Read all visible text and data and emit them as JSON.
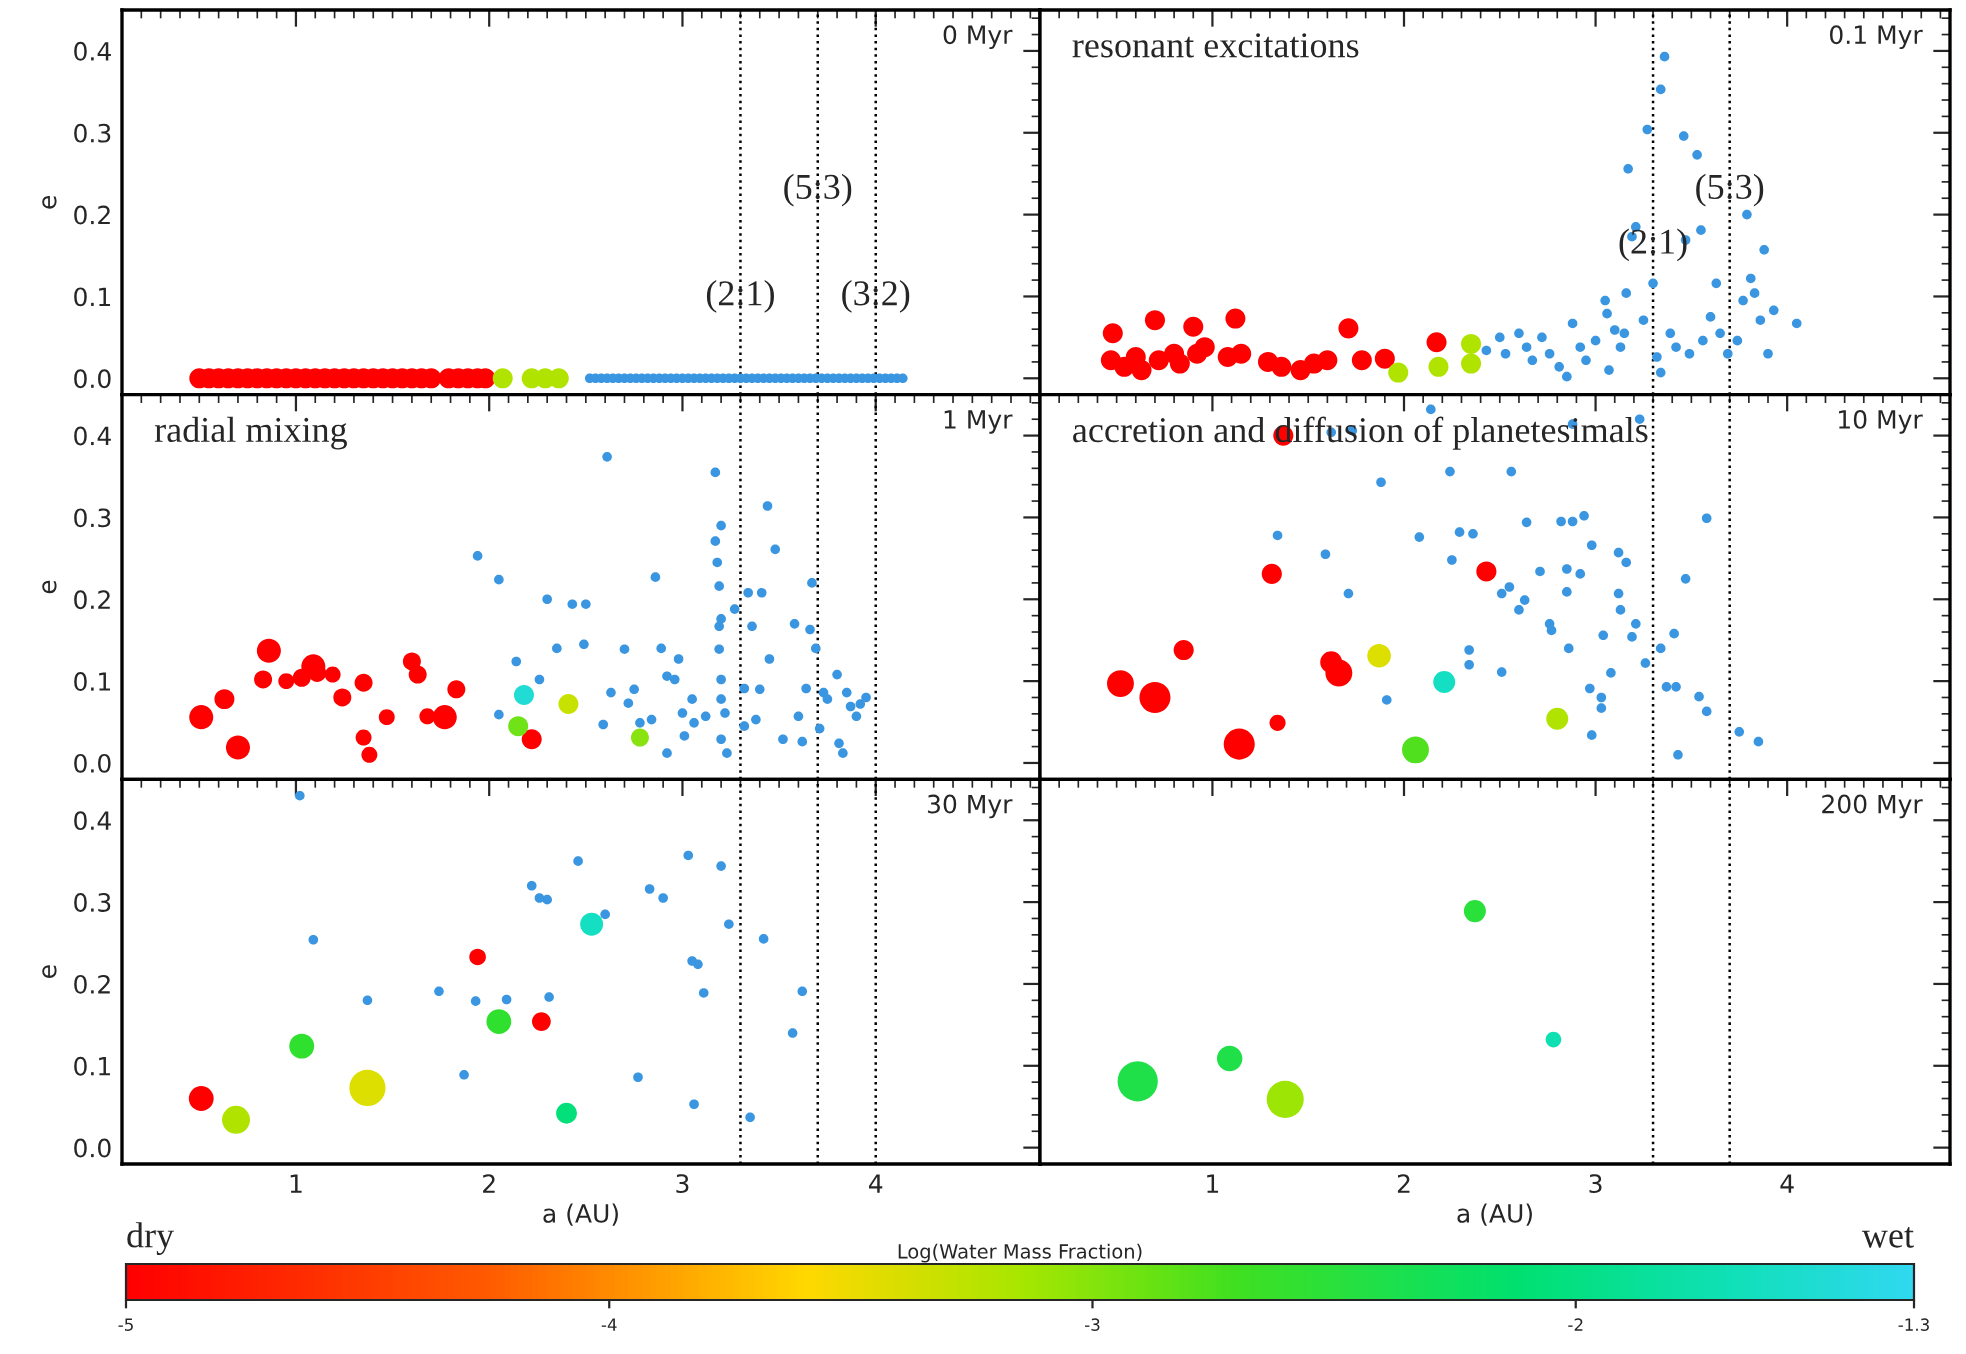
{
  "chart_data": [
    {
      "type": "bubble",
      "title": "0 Myr",
      "ylabel": "e",
      "annotations": [
        {
          "text": "(2:1)",
          "x": 3.3,
          "y": 0.1
        },
        {
          "text": "(5:3)",
          "x": 3.7,
          "y": 0.23
        },
        {
          "text": "(3:2)",
          "x": 4.0,
          "y": 0.1
        }
      ],
      "xlim": [
        0.1,
        4.85
      ],
      "ylim": [
        -0.02,
        0.45
      ],
      "xticks": [
        1,
        2,
        3,
        4
      ],
      "yticks": [
        {
          "value": 0,
          "label": "0.0"
        },
        {
          "value": 0.1,
          "label": "0.1"
        },
        {
          "value": 0.2,
          "label": "0.2"
        },
        {
          "value": 0.3,
          "label": "0.3"
        },
        {
          "value": 0.4,
          "label": "0.4"
        }
      ],
      "tick_labels": "y",
      "ref_lines": [
        {
          "axis": "x",
          "value": 3.3,
          "line_style": "dotted",
          "color": "#000000"
        },
        {
          "axis": "x",
          "value": 3.7,
          "line_style": "dotted",
          "color": "#000000"
        },
        {
          "axis": "x",
          "value": 4.0,
          "line_style": "dotted",
          "color": "#000000"
        }
      ],
      "series": [
        {
          "type": "bubble",
          "x": [
            0.5,
            0.55,
            0.6,
            0.65,
            0.7,
            0.75,
            0.8,
            0.85,
            0.9,
            0.95,
            1.0,
            1.05,
            1.1,
            1.15,
            1.2,
            1.25,
            1.3,
            1.35,
            1.4,
            1.45,
            1.5,
            1.55,
            1.6,
            1.65,
            1.7,
            1.79,
            1.84,
            1.89,
            1.94,
            1.98,
            2.07,
            2.22,
            2.29,
            2.36
          ],
          "values": [
            0,
            0,
            0,
            0,
            0,
            0,
            0,
            0,
            0,
            0,
            0,
            0,
            0,
            0,
            0,
            0,
            0,
            0,
            0,
            0,
            0,
            0,
            0,
            0,
            0,
            0,
            0,
            0,
            0,
            0,
            0,
            0,
            0,
            0
          ],
          "sizes": [
            1,
            1,
            1,
            1,
            1,
            1,
            1,
            1,
            1,
            1,
            1,
            1,
            1,
            1,
            1,
            1,
            1,
            1,
            1,
            1,
            1,
            1,
            1,
            1,
            1,
            1,
            1,
            1,
            1,
            1,
            1,
            1,
            1,
            1
          ],
          "colors": [
            "#ff0000",
            "#ff0000",
            "#ff0000",
            "#ff0000",
            "#ff0000",
            "#ff0000",
            "#ff0000",
            "#ff0000",
            "#ff0000",
            "#ff0000",
            "#ff0000",
            "#ff0000",
            "#ff0000",
            "#ff0000",
            "#ff0000",
            "#ff0000",
            "#ff0000",
            "#ff0000",
            "#ff0000",
            "#ff0000",
            "#ff0000",
            "#ff0000",
            "#ff0000",
            "#ff0000",
            "#ff0000",
            "#ff0000",
            "#ff0000",
            "#ff0000",
            "#ff0000",
            "#ff0000",
            "#b0e400",
            "#b0e400",
            "#b0e400",
            "#b0e400"
          ]
        },
        {
          "type": "scatter",
          "color": "#3a96e0",
          "x": [
            2.52,
            2.55,
            2.58,
            2.61,
            2.64,
            2.67,
            2.7,
            2.73,
            2.76,
            2.79,
            2.82,
            2.85,
            2.88,
            2.91,
            2.94,
            2.97,
            3.0,
            3.03,
            3.06,
            3.09,
            3.12,
            3.15,
            3.18,
            3.21,
            3.24,
            3.27,
            3.3,
            3.33,
            3.36,
            3.39,
            3.42,
            3.45,
            3.48,
            3.51,
            3.54,
            3.57,
            3.6,
            3.63,
            3.66,
            3.69,
            3.72,
            3.75,
            3.78,
            3.81,
            3.84,
            3.87,
            3.9,
            3.93,
            3.96,
            3.99,
            4.02,
            4.05,
            4.08,
            4.11,
            4.14
          ],
          "values": [
            0,
            0,
            0,
            0,
            0,
            0,
            0,
            0,
            0,
            0,
            0,
            0,
            0,
            0,
            0,
            0,
            0,
            0,
            0,
            0,
            0,
            0,
            0,
            0,
            0,
            0,
            0,
            0,
            0,
            0,
            0,
            0,
            0,
            0,
            0,
            0,
            0,
            0,
            0,
            0,
            0,
            0,
            0,
            0,
            0,
            0,
            0,
            0,
            0,
            0,
            0,
            0,
            0,
            0,
            0
          ]
        }
      ]
    },
    {
      "type": "bubble",
      "title": "0.1 Myr",
      "annotations": [
        "resonant excitations",
        {
          "text": "(2:1)",
          "x": 3.3,
          "y": 0.163
        },
        {
          "text": "(5:3)",
          "x": 3.7,
          "y": 0.23
        }
      ],
      "xlim": [
        0.1,
        4.85
      ],
      "ylim": [
        -0.02,
        0.45
      ],
      "xticks": [
        1,
        2,
        3,
        4
      ],
      "yticks": [
        0,
        0.1,
        0.2,
        0.3,
        0.4
      ],
      "tick_labels": false,
      "ref_lines": [
        {
          "axis": "x",
          "value": 3.3,
          "line_style": "dotted",
          "color": "#000000"
        },
        {
          "axis": "x",
          "value": 3.7,
          "line_style": "dotted",
          "color": "#000000"
        }
      ],
      "series": [
        {
          "type": "bubble",
          "x": [
            0.48,
            0.47,
            0.54,
            0.6,
            0.63,
            0.7,
            0.72,
            0.8,
            0.83,
            0.9,
            0.92,
            0.96,
            1.12,
            1.08,
            1.15,
            1.29,
            1.36,
            1.46,
            1.53,
            1.6,
            1.71,
            1.78,
            1.9,
            2.17,
            1.97,
            2.18,
            2.35,
            2.35
          ],
          "values": [
            0.055,
            0.022,
            0.014,
            0.026,
            0.01,
            0.071,
            0.022,
            0.03,
            0.018,
            0.063,
            0.03,
            0.038,
            0.073,
            0.026,
            0.03,
            0.02,
            0.014,
            0.01,
            0.018,
            0.022,
            0.061,
            0.022,
            0.024,
            0.044,
            0.007,
            0.014,
            0.042,
            0.018
          ],
          "sizes": [
            1,
            1,
            1,
            1,
            1,
            1,
            1,
            1,
            1,
            1,
            1,
            1,
            1,
            1,
            1,
            1,
            1,
            1,
            1,
            1,
            1,
            1,
            1,
            1,
            1,
            1,
            1,
            1
          ],
          "colors": [
            "#ff0000",
            "#ff0000",
            "#ff0000",
            "#ff0000",
            "#ff0000",
            "#ff0000",
            "#ff0000",
            "#ff0000",
            "#ff0000",
            "#ff0000",
            "#ff0000",
            "#ff0000",
            "#ff0000",
            "#ff0000",
            "#ff0000",
            "#ff0000",
            "#ff0000",
            "#ff0000",
            "#ff0000",
            "#ff0000",
            "#ff0000",
            "#ff0000",
            "#ff0000",
            "#ff0000",
            "#b0e400",
            "#b0e400",
            "#b0e400",
            "#b0e400"
          ]
        },
        {
          "type": "scatter",
          "color": "#3a96e0",
          "x": [
            2.43,
            2.5,
            2.53,
            2.6,
            2.64,
            2.67,
            2.72,
            2.76,
            2.81,
            2.85,
            2.88,
            2.92,
            2.95,
            3.0,
            3.05,
            3.06,
            3.07,
            3.1,
            3.13,
            3.15,
            3.16,
            3.17,
            3.19,
            3.21,
            3.25,
            3.27,
            3.3,
            3.32,
            3.34,
            3.36,
            3.34,
            3.39,
            3.42,
            3.46,
            3.47,
            3.49,
            3.53,
            3.55,
            3.56,
            3.6,
            3.63,
            3.65,
            3.69,
            3.74,
            3.79,
            3.77,
            3.81,
            3.83,
            3.88,
            3.86,
            3.9,
            3.93,
            4.05
          ],
          "values": [
            0.034,
            0.05,
            0.03,
            0.055,
            0.038,
            0.022,
            0.05,
            0.03,
            0.014,
            0.002,
            0.067,
            0.038,
            0.022,
            0.046,
            0.095,
            0.079,
            0.01,
            0.059,
            0.038,
            0.055,
            0.104,
            0.256,
            0.173,
            0.185,
            0.071,
            0.304,
            0.116,
            0.026,
            0.353,
            0.393,
            0.007,
            0.055,
            0.038,
            0.296,
            0.169,
            0.03,
            0.273,
            0.181,
            0.046,
            0.075,
            0.116,
            0.055,
            0.03,
            0.046,
            0.2,
            0.095,
            0.122,
            0.104,
            0.157,
            0.071,
            0.03,
            0.083,
            0.067
          ]
        }
      ]
    },
    {
      "type": "bubble",
      "title": "1 Myr",
      "annotations": [
        "radial mixing"
      ],
      "ylabel": "e",
      "xlim": [
        0.1,
        4.85
      ],
      "ylim": [
        -0.02,
        0.45
      ],
      "xticks": [
        1,
        2,
        3,
        4
      ],
      "yticks": [
        {
          "value": 0,
          "label": "0.0"
        },
        {
          "value": 0.1,
          "label": "0.1"
        },
        {
          "value": 0.2,
          "label": "0.2"
        },
        {
          "value": 0.3,
          "label": "0.3"
        },
        {
          "value": 0.4,
          "label": "0.4"
        }
      ],
      "tick_labels": "y",
      "ref_lines": [
        {
          "axis": "x",
          "value": 3.3,
          "line_style": "dotted",
          "color": "#000000"
        },
        {
          "axis": "x",
          "value": 3.7,
          "line_style": "dotted",
          "color": "#000000"
        },
        {
          "axis": "x",
          "value": 4.0,
          "line_style": "dotted",
          "color": "#000000"
        }
      ],
      "series": [
        {
          "type": "bubble",
          "x": [
            0.51,
            0.63,
            0.7,
            0.86,
            0.83,
            0.95,
            1.03,
            1.09,
            1.11,
            1.19,
            1.24,
            1.35,
            1.35,
            1.38,
            1.47,
            1.6,
            1.63,
            1.68,
            1.77,
            1.83,
            2.22,
            2.18,
            2.15,
            2.41,
            2.78
          ],
          "values": [
            0.056,
            0.078,
            0.019,
            0.137,
            0.102,
            0.1,
            0.104,
            0.118,
            0.11,
            0.108,
            0.08,
            0.098,
            0.031,
            0.01,
            0.056,
            0.124,
            0.108,
            0.057,
            0.056,
            0.09,
            0.029,
            0.083,
            0.045,
            0.072,
            0.031
          ],
          "sizes": [
            1,
            0.69,
            1,
            1,
            0.56,
            0.44,
            0.56,
            1,
            0.56,
            0.44,
            0.56,
            0.56,
            0.44,
            0.44,
            0.44,
            0.56,
            0.56,
            0.44,
            1,
            0.56,
            0.69,
            0.69,
            0.69,
            0.69,
            0.56
          ],
          "colors": [
            "#ff0000",
            "#ff0000",
            "#ff0000",
            "#ff0000",
            "#ff0000",
            "#ff0000",
            "#ff0000",
            "#ff0000",
            "#ff0000",
            "#ff0000",
            "#ff0000",
            "#ff0000",
            "#ff0000",
            "#ff0000",
            "#ff0000",
            "#ff0000",
            "#ff0000",
            "#ff0000",
            "#ff0000",
            "#ff0000",
            "#ff0000",
            "#20dcd4",
            "#70e218",
            "#c8e200",
            "#88e310"
          ]
        },
        {
          "type": "scatter",
          "color": "#3a96e0",
          "x": [
            1.94,
            2.05,
            2.05,
            2.14,
            2.26,
            2.3,
            2.35,
            2.43,
            2.5,
            2.49,
            2.61,
            2.59,
            2.63,
            2.7,
            2.72,
            2.75,
            2.78,
            2.84,
            2.86,
            2.89,
            2.92,
            2.92,
            2.96,
            2.98,
            3.0,
            3.01,
            3.05,
            3.06,
            3.12,
            3.17,
            3.17,
            3.18,
            3.19,
            3.19,
            3.19,
            3.2,
            3.2,
            3.2,
            3.2,
            3.22,
            3.2,
            3.23,
            3.27,
            3.32,
            3.32,
            3.34,
            3.36,
            3.38,
            3.4,
            3.41,
            3.44,
            3.45,
            3.48,
            3.52,
            3.58,
            3.6,
            3.62,
            3.64,
            3.66,
            3.67,
            3.69,
            3.71,
            3.73,
            3.75,
            3.8,
            3.81,
            3.83,
            3.85,
            3.87,
            3.9,
            3.92,
            3.95
          ],
          "values": [
            0.253,
            0.224,
            0.059,
            0.124,
            0.102,
            0.2,
            0.14,
            0.194,
            0.194,
            0.145,
            0.374,
            0.047,
            0.086,
            0.139,
            0.073,
            0.09,
            0.049,
            0.053,
            0.227,
            0.14,
            0.012,
            0.106,
            0.102,
            0.127,
            0.061,
            0.033,
            0.078,
            0.049,
            0.057,
            0.355,
            0.271,
            0.245,
            0.216,
            0.167,
            0.139,
            0.29,
            0.176,
            0.102,
            0.078,
            0.061,
            0.029,
            0.012,
            0.188,
            0.091,
            0.045,
            0.208,
            0.167,
            0.053,
            0.09,
            0.208,
            0.314,
            0.127,
            0.261,
            0.029,
            0.17,
            0.057,
            0.026,
            0.091,
            0.163,
            0.22,
            0.14,
            0.042,
            0.086,
            0.078,
            0.108,
            0.024,
            0.012,
            0.086,
            0.069,
            0.057,
            0.072,
            0.08
          ]
        }
      ]
    },
    {
      "type": "bubble",
      "title": "10 Myr",
      "annotations": [
        "accretion and diffusion of planetesimals"
      ],
      "xlim": [
        0.1,
        4.85
      ],
      "ylim": [
        -0.02,
        0.45
      ],
      "xticks": [
        1,
        2,
        3,
        4
      ],
      "yticks": [
        0,
        0.1,
        0.2,
        0.3,
        0.4
      ],
      "tick_labels": false,
      "ref_lines": [
        {
          "axis": "x",
          "value": 3.3,
          "line_style": "dotted",
          "color": "#000000"
        },
        {
          "axis": "x",
          "value": 3.7,
          "line_style": "dotted",
          "color": "#000000"
        }
      ],
      "series": [
        {
          "type": "bubble",
          "x": [
            0.52,
            0.7,
            0.85,
            1.14,
            1.31,
            1.34,
            1.37,
            1.62,
            1.66,
            2.43,
            1.87,
            2.21,
            2.06,
            2.8
          ],
          "values": [
            0.097,
            0.08,
            0.138,
            0.023,
            0.231,
            0.049,
            0.4,
            0.123,
            0.11,
            0.234,
            0.131,
            0.099,
            0.016,
            0.054
          ],
          "sizes": [
            0.75,
            1,
            0.42,
            1,
            0.42,
            0.27,
            0.42,
            0.5,
            0.75,
            0.42,
            0.58,
            0.5,
            0.75,
            0.5
          ],
          "colors": [
            "#ff0000",
            "#ff0000",
            "#ff0000",
            "#ff0000",
            "#ff0000",
            "#ff0000",
            "#ff0000",
            "#ff0000",
            "#ff0000",
            "#ff0000",
            "#dcdf00",
            "#14dfc2",
            "#50e01d",
            "#b0e400"
          ]
        },
        {
          "type": "scatter",
          "color": "#3a96e0",
          "x": [
            1.34,
            1.59,
            1.62,
            1.73,
            1.71,
            1.88,
            1.91,
            2.08,
            2.14,
            2.24,
            2.25,
            2.29,
            2.36,
            2.34,
            2.34,
            2.51,
            2.51,
            2.55,
            2.56,
            2.6,
            2.63,
            2.64,
            2.71,
            2.76,
            2.77,
            2.82,
            2.85,
            2.85,
            2.86,
            2.88,
            2.88,
            2.92,
            2.94,
            2.97,
            2.98,
            2.98,
            3.03,
            3.03,
            3.04,
            3.08,
            3.12,
            3.12,
            3.13,
            3.16,
            3.19,
            3.21,
            3.23,
            3.26,
            3.34,
            3.37,
            3.42,
            3.41,
            3.43,
            3.47,
            3.54,
            3.58,
            3.58,
            3.75,
            3.85
          ],
          "values": [
            0.278,
            0.255,
            0.404,
            0.406,
            0.207,
            0.343,
            0.077,
            0.276,
            0.432,
            0.356,
            0.248,
            0.282,
            0.28,
            0.138,
            0.12,
            0.207,
            0.111,
            0.215,
            0.356,
            0.187,
            0.199,
            0.294,
            0.234,
            0.17,
            0.162,
            0.295,
            0.237,
            0.209,
            0.14,
            0.295,
            0.414,
            0.231,
            0.302,
            0.091,
            0.266,
            0.034,
            0.08,
            0.067,
            0.156,
            0.11,
            0.257,
            0.207,
            0.187,
            0.245,
            0.154,
            0.17,
            0.42,
            0.122,
            0.14,
            0.093,
            0.093,
            0.158,
            0.01,
            0.225,
            0.081,
            0.299,
            0.063,
            0.038,
            0.026
          ]
        }
      ]
    },
    {
      "type": "bubble",
      "title": "30 Myr",
      "ylabel": "e",
      "xlabel": "a (AU)",
      "xlim": [
        0.1,
        4.85
      ],
      "ylim": [
        -0.02,
        0.45
      ],
      "xticks": [
        1,
        2,
        3,
        4
      ],
      "yticks": [
        {
          "value": 0,
          "label": "0.0"
        },
        {
          "value": 0.1,
          "label": "0.1"
        },
        {
          "value": 0.2,
          "label": "0.2"
        },
        {
          "value": 0.3,
          "label": "0.3"
        },
        {
          "value": 0.4,
          "label": "0.4"
        }
      ],
      "ref_lines": [
        {
          "axis": "x",
          "value": 3.3,
          "line_style": "dotted",
          "color": "#000000"
        },
        {
          "axis": "x",
          "value": 3.7,
          "line_style": "dotted",
          "color": "#000000"
        },
        {
          "axis": "x",
          "value": 4.0,
          "line_style": "dotted",
          "color": "#000000"
        }
      ],
      "series": [
        {
          "type": "bubble",
          "x": [
            0.51,
            1.94,
            2.27,
            0.69,
            1.03,
            1.37,
            2.05,
            2.4,
            2.53
          ],
          "values": [
            0.06,
            0.233,
            0.154,
            0.034,
            0.124,
            0.073,
            0.154,
            0.042,
            0.273
          ],
          "sizes": [
            0.47,
            0.21,
            0.27,
            0.6,
            0.47,
            1,
            0.47,
            0.33,
            0.4
          ],
          "colors": [
            "#ff0000",
            "#ff0000",
            "#ff0000",
            "#b0e400",
            "#30e02e",
            "#dcdf00",
            "#30e02e",
            "#03e07a",
            "#14dfc2"
          ]
        },
        {
          "type": "scatter",
          "color": "#3a96e0",
          "x": [
            1.02,
            1.09,
            1.37,
            1.74,
            1.87,
            1.93,
            2.09,
            2.22,
            2.26,
            2.3,
            2.31,
            2.46,
            2.6,
            2.77,
            2.83,
            2.9,
            3.03,
            3.05,
            3.08,
            3.06,
            3.11,
            3.2,
            3.24,
            3.35,
            3.42,
            3.57,
            3.62
          ],
          "values": [
            0.43,
            0.254,
            0.18,
            0.191,
            0.089,
            0.179,
            0.181,
            0.32,
            0.305,
            0.303,
            0.184,
            0.35,
            0.285,
            0.086,
            0.316,
            0.305,
            0.357,
            0.228,
            0.224,
            0.053,
            0.189,
            0.344,
            0.273,
            0.037,
            0.255,
            0.14,
            0.191
          ]
        }
      ]
    },
    {
      "type": "bubble",
      "title": "200 Myr",
      "xlabel": "a (AU)",
      "annotations": [
        "dry",
        "wet"
      ],
      "xlim": [
        0.1,
        4.85
      ],
      "ylim": [
        -0.02,
        0.45
      ],
      "xticks": [
        1,
        2,
        3,
        4
      ],
      "yticks": [
        0,
        0.1,
        0.2,
        0.3,
        0.4
      ],
      "clim": [
        -5,
        -1.3
      ],
      "cticks": [
        -5,
        -4,
        -3,
        -2,
        -1.3
      ],
      "clabel": "Log(Water Mass Fraction)",
      "tick_labels": "x",
      "ref_lines": [
        {
          "axis": "x",
          "value": 3.3,
          "line_style": "dotted",
          "color": "#000000"
        },
        {
          "axis": "x",
          "value": 3.7,
          "line_style": "dotted",
          "color": "#000000"
        }
      ],
      "series": [
        {
          "type": "bubble",
          "x": [
            0.61,
            1.09,
            1.38,
            2.37,
            2.78
          ],
          "values": [
            0.081,
            0.109,
            0.059,
            0.289,
            0.132
          ],
          "sizes": [
            1,
            0.4,
            0.85,
            0.3,
            0.15
          ],
          "cvalues": [
            -2.4,
            -2.4,
            -3.1,
            -2.5,
            -1.7
          ]
        }
      ]
    }
  ]
}
